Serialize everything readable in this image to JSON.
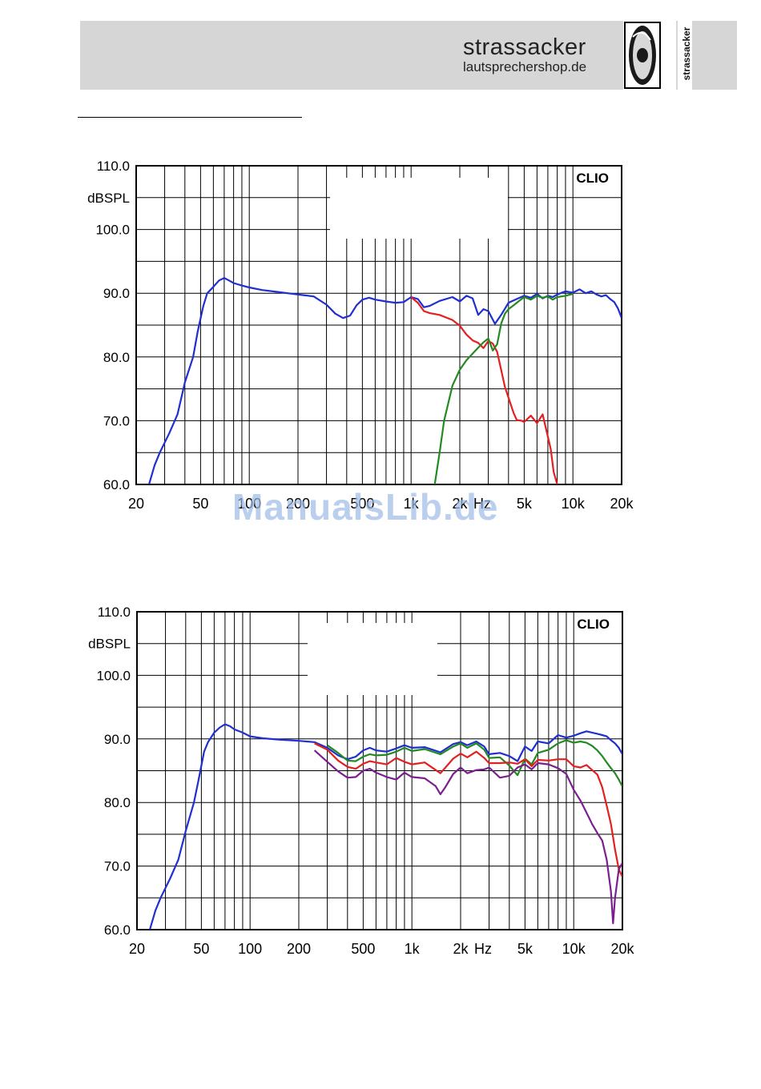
{
  "header": {
    "brand_name": "strassacker",
    "brand_site": "lautsprechershop.de",
    "logo_vertical_text": "strassacker"
  },
  "watermark": "ManualsLib.de",
  "chart_data": [
    {
      "type": "line",
      "title": "CLIO",
      "ylabel": "dBSPL",
      "xlabel": "Hz",
      "x_scale": "log",
      "xlim": [
        20,
        20000
      ],
      "ylim": [
        60,
        110
      ],
      "yticks": [
        "110.0",
        "100.0",
        "90.0",
        "80.0",
        "70.0",
        "60.0"
      ],
      "xticks": [
        "20",
        "50",
        "100",
        "200",
        "500",
        "1k",
        "2k",
        "5k",
        "10k",
        "20k"
      ],
      "series": [
        {
          "color": "#1f2fd0",
          "x": [
            24,
            26,
            28,
            32,
            36,
            40,
            45,
            48,
            52,
            55,
            60,
            65,
            70,
            75,
            80,
            90,
            100,
            120,
            150,
            200,
            250,
            300,
            340,
            380,
            420,
            460,
            500,
            550,
            600,
            700,
            800,
            900,
            1000,
            1100,
            1200,
            1300,
            1500,
            1800,
            2000,
            2200,
            2400,
            2600,
            2800,
            3000,
            3300,
            3600,
            4000,
            4500,
            5000,
            5500,
            6000,
            6500,
            7000,
            7500,
            8000,
            9000,
            10000,
            11000,
            12000,
            13000,
            14000,
            15000,
            16000,
            17000,
            18000,
            19000,
            20000
          ],
          "y": [
            60,
            63,
            65,
            68,
            71,
            76,
            80,
            84,
            88,
            90,
            91,
            92,
            92.4,
            92,
            91.6,
            91.2,
            90.9,
            90.5,
            90.2,
            89.8,
            89.5,
            88.2,
            86.8,
            86.1,
            86.5,
            88.1,
            89,
            89.3,
            89,
            88.7,
            88.5,
            88.6,
            89.4,
            89.1,
            87.8,
            88,
            88.8,
            89.4,
            88.7,
            89.6,
            89.2,
            86.6,
            87.5,
            87.2,
            85.2,
            86.6,
            88.5,
            89.1,
            89.6,
            89.3,
            89.9,
            89.2,
            89.6,
            89.4,
            89.8,
            90.3,
            90.1,
            90.6,
            90,
            90.3,
            89.8,
            89.5,
            89.7,
            89.1,
            88.6,
            87.6,
            86.1
          ]
        },
        {
          "color": "#e32020",
          "x": [
            1000,
            1100,
            1200,
            1300,
            1500,
            1800,
            2000,
            2200,
            2400,
            2600,
            2800,
            3000,
            3200,
            3400,
            3600,
            3800,
            4000,
            4300,
            4500,
            4800,
            5000,
            5500,
            6000,
            6500,
            7000,
            7300,
            7600,
            8000
          ],
          "y": [
            89.4,
            88.5,
            87.2,
            86.9,
            86.6,
            85.8,
            84.9,
            83.5,
            82.6,
            82.2,
            81.4,
            82.5,
            82.1,
            80.8,
            78,
            75.3,
            73.6,
            71.2,
            70.1,
            70,
            69.8,
            70.8,
            69.6,
            71,
            67.5,
            65.5,
            62,
            60
          ]
        },
        {
          "color": "#238a23",
          "x": [
            1400,
            1500,
            1600,
            1800,
            2000,
            2200,
            2500,
            2800,
            3000,
            3200,
            3400,
            3600,
            3800,
            4000,
            4300,
            4600,
            5000,
            5500,
            6000,
            6500,
            7000,
            7500,
            8000,
            9000,
            10000
          ],
          "y": [
            60,
            65,
            70,
            75.5,
            78,
            79.5,
            81,
            82.3,
            82.9,
            81,
            82,
            85.2,
            86.8,
            87.5,
            88.1,
            88.7,
            89.4,
            89,
            89.6,
            89.3,
            89.5,
            89,
            89.4,
            89.6,
            89.9
          ]
        }
      ]
    },
    {
      "type": "line",
      "title": "CLIO",
      "ylabel": "dBSPL",
      "xlabel": "Hz",
      "x_scale": "log",
      "xlim": [
        20,
        20000
      ],
      "ylim": [
        60,
        110
      ],
      "yticks": [
        "110.0",
        "100.0",
        "90.0",
        "80.0",
        "70.0",
        "60.0"
      ],
      "xticks": [
        "20",
        "50",
        "100",
        "200",
        "500",
        "1k",
        "2k",
        "5k",
        "10k",
        "20k"
      ],
      "series": [
        {
          "color": "#1f2fd0",
          "x": [
            24,
            26,
            28,
            32,
            36,
            40,
            45,
            48,
            52,
            55,
            60,
            65,
            70,
            75,
            80,
            90,
            100,
            120,
            150,
            200,
            250,
            300,
            350,
            400,
            450,
            500,
            550,
            600,
            700,
            800,
            900,
            1000,
            1200,
            1500,
            1800,
            2000,
            2200,
            2500,
            2800,
            3000,
            3500,
            4000,
            4500,
            5000,
            5500,
            6000,
            7000,
            8000,
            9000,
            10000,
            11000,
            12000,
            13000,
            14000,
            15000,
            16000,
            17000,
            18000,
            19000,
            20000
          ],
          "y": [
            60,
            63,
            65,
            68,
            71,
            75.5,
            80,
            83.5,
            88,
            89.5,
            91,
            91.8,
            92.3,
            92,
            91.5,
            91,
            90.4,
            90.1,
            89.9,
            89.7,
            89.5,
            88.6,
            87.4,
            86.8,
            87.2,
            88.2,
            88.6,
            88.2,
            88,
            88.5,
            89,
            88.6,
            88.7,
            87.9,
            89.2,
            89.5,
            89,
            89.6,
            88.8,
            87.6,
            87.8,
            87.3,
            86.5,
            88.8,
            88.1,
            89.6,
            89.3,
            90.6,
            90.2,
            90.5,
            90.9,
            91.2,
            91,
            90.8,
            90.6,
            90.4,
            89.8,
            89.3,
            88.6,
            87.6
          ]
        },
        {
          "color": "#238a23",
          "x": [
            300,
            350,
            400,
            450,
            500,
            550,
            600,
            700,
            800,
            900,
            1000,
            1200,
            1500,
            1800,
            2000,
            2200,
            2500,
            2800,
            3000,
            3500,
            4000,
            4500,
            5000,
            5500,
            6000,
            7000,
            8000,
            9000,
            10000,
            11000,
            12000,
            13000,
            14000,
            15000,
            16000,
            17000,
            18000,
            19000,
            20000
          ],
          "y": [
            89,
            87.8,
            86.6,
            86.5,
            87.2,
            87.6,
            87.4,
            87.5,
            88,
            88.6,
            88.1,
            88.4,
            87.6,
            88.8,
            89.3,
            88.6,
            89.3,
            88.3,
            87,
            87.1,
            85.8,
            84.3,
            86.9,
            86,
            87.8,
            88.3,
            89.3,
            89.8,
            89.4,
            89.6,
            89.4,
            88.9,
            88.2,
            87.3,
            86.3,
            85.4,
            84.6,
            83.6,
            82.5
          ]
        },
        {
          "color": "#e32020",
          "x": [
            250,
            300,
            350,
            400,
            450,
            500,
            550,
            600,
            700,
            800,
            900,
            1000,
            1200,
            1500,
            1800,
            2000,
            2200,
            2500,
            2800,
            3000,
            3500,
            4000,
            4500,
            5000,
            5500,
            6000,
            7000,
            8000,
            9000,
            10000,
            11000,
            12000,
            13000,
            14000,
            15000,
            16000,
            17000,
            18000,
            19000,
            20000
          ],
          "y": [
            89.3,
            88.3,
            86.6,
            85.6,
            85.3,
            86.1,
            86.5,
            86.3,
            86,
            87,
            86.4,
            86,
            86.3,
            84.6,
            86.9,
            87.7,
            87.1,
            88,
            87,
            86.2,
            86.2,
            86.3,
            86.1,
            86.8,
            85.7,
            86.7,
            86.6,
            86.8,
            86.8,
            85.7,
            85.5,
            85.9,
            85.1,
            84.4,
            82.4,
            79.5,
            76.6,
            72.6,
            69.5,
            68.3
          ]
        },
        {
          "color": "#7b1f8f",
          "x": [
            250,
            300,
            350,
            400,
            450,
            500,
            550,
            600,
            700,
            800,
            900,
            1000,
            1200,
            1400,
            1500,
            1600,
            1800,
            2000,
            2200,
            2500,
            2800,
            3000,
            3500,
            4000,
            4500,
            5000,
            5500,
            6000,
            7000,
            8000,
            9000,
            10000,
            11000,
            12000,
            13000,
            14000,
            15000,
            16000,
            17000,
            17500,
            18000,
            19000,
            20000
          ],
          "y": [
            88.2,
            86.4,
            84.9,
            83.9,
            84,
            85,
            85.3,
            84.7,
            84,
            83.6,
            84.7,
            84,
            83.8,
            82.6,
            81.3,
            82.3,
            84.5,
            85.5,
            84.6,
            85.1,
            85.2,
            85.5,
            83.9,
            84.2,
            85.5,
            86,
            85.2,
            86.2,
            86,
            85.4,
            84.5,
            82,
            80.3,
            78.4,
            76.6,
            75.2,
            74,
            71,
            66,
            61,
            65,
            69.5,
            70.5
          ]
        }
      ]
    }
  ]
}
